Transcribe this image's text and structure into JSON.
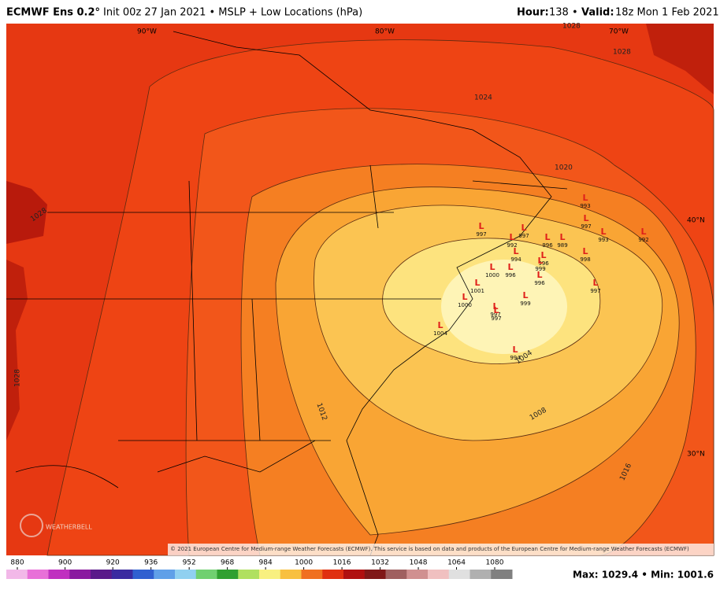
{
  "header": {
    "model": "ECMWF Ens 0.2°",
    "run": "Init 00z 27 Jan 2021 • MSLP + Low Locations (hPa)",
    "hour_label": "Hour:",
    "hour": "138 •",
    "valid_label": "Valid:",
    "valid": "18z Mon 1 Feb 2021"
  },
  "map": {
    "lon_labels": [
      "90°W",
      "80°W",
      "70°W"
    ],
    "lat_labels": [
      "40°N",
      "30°N"
    ],
    "contour_labels": [
      "1028",
      "1028",
      "1024",
      "1020",
      "1016",
      "1012",
      "1008",
      "1004",
      "1028",
      "1028"
    ],
    "low_marker": "L",
    "lows": [
      993,
      997,
      997,
      996,
      989,
      993,
      992,
      997,
      992,
      994,
      996,
      999,
      998,
      996,
      997,
      997,
      999,
      997,
      1004,
      994,
      1000,
      1001,
      1000,
      996
    ],
    "copyright": "© 2021 European Centre for Medium-range Weather Forecasts (ECMWF). This service is based on data and products of the European Centre for Medium-range Weather Forecasts (ECMWF)",
    "logo": "WEATHERBELL"
  },
  "colorbar": {
    "ticks": [
      880,
      900,
      920,
      936,
      952,
      968,
      984,
      1000,
      1016,
      1032,
      1048,
      1064,
      1080
    ]
  },
  "footer": {
    "stats": "Max: 1029.4 • Min: 1001.6"
  }
}
